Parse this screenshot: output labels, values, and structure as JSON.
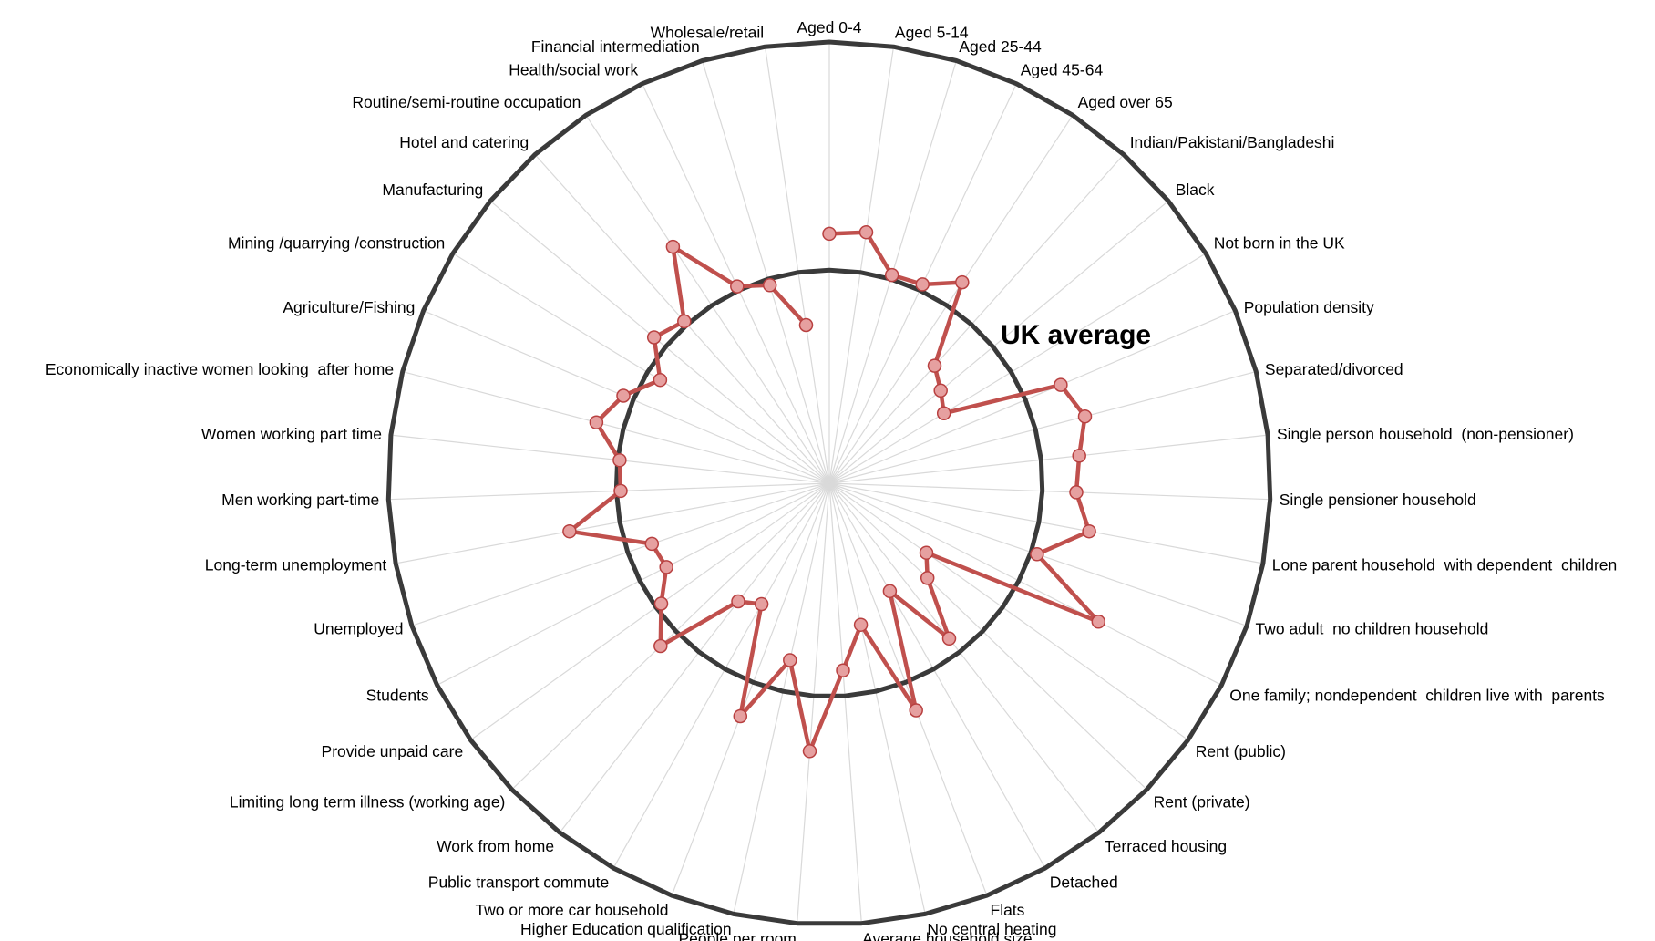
{
  "chart_data": {
    "type": "radar",
    "title": "",
    "categories": [
      "Aged 0-4",
      "Aged 5-14",
      "Aged 25-44",
      "Aged 45-64",
      "Aged over 65",
      "Indian/Pakistani/Bangladeshi",
      "Black",
      "Not born in the UK",
      "Population density",
      "Separated/divorced",
      "Single person household  (non-pensioner)",
      "Single pensioner household",
      "Lone parent household  with dependent  children",
      "Two adult  no children household",
      "One family; nondependent  children live with  parents",
      "Rent (public)",
      "Rent (private)",
      "Terraced housing",
      "Detached",
      "Flats",
      "No central heating",
      "Average household size",
      "People per room",
      "Higher Education qualification",
      "Two or more car household",
      "Public transport commute",
      "Work from home",
      "Limiting long term illness (working age)",
      "Provide unpaid care",
      "Students",
      "Unemployed",
      "Long-term unemployment",
      "Men working part-time",
      "Women working part time",
      "Economically inactive women looking  after home",
      "Agriculture/Fishing",
      "Mining /quarrying /construction",
      "Manufacturing",
      "Hotel and catering",
      "Routine/semi-routine occupation",
      "Health/social work",
      "Financial intermediation",
      "Wholesale/retail"
    ],
    "series": [
      {
        "values": [
          1.17,
          1.19,
          1.02,
          1.03,
          1.13,
          0.74,
          0.68,
          0.63,
          1.18,
          1.24,
          1.18,
          1.16,
          1.24,
          1.03,
          1.42,
          0.56,
          0.64,
          0.92,
          0.58,
          1.14,
          0.68,
          0.88,
          1.26,
          0.85,
          1.17,
          0.65,
          0.7,
          1.1,
          0.97,
          0.86,
          0.88,
          1.24,
          0.98,
          0.99,
          1.13,
          1.05,
          0.93,
          1.07,
          1.02,
          1.33,
          1.02,
          0.97,
          0.75
        ]
      }
    ],
    "reference_ring": {
      "label": "UK average",
      "value": 1.0
    },
    "rlim": [
      0,
      2.07
    ],
    "grid": true,
    "legend": "none",
    "colors": {
      "series_line": "#c0504d",
      "marker_fill": "#e6a0a0",
      "marker_edge": "#b84040",
      "reference_ring": "#3a3a3a",
      "outer_ring": "#3a3a3a",
      "spokes": "#d9d9d9"
    }
  }
}
